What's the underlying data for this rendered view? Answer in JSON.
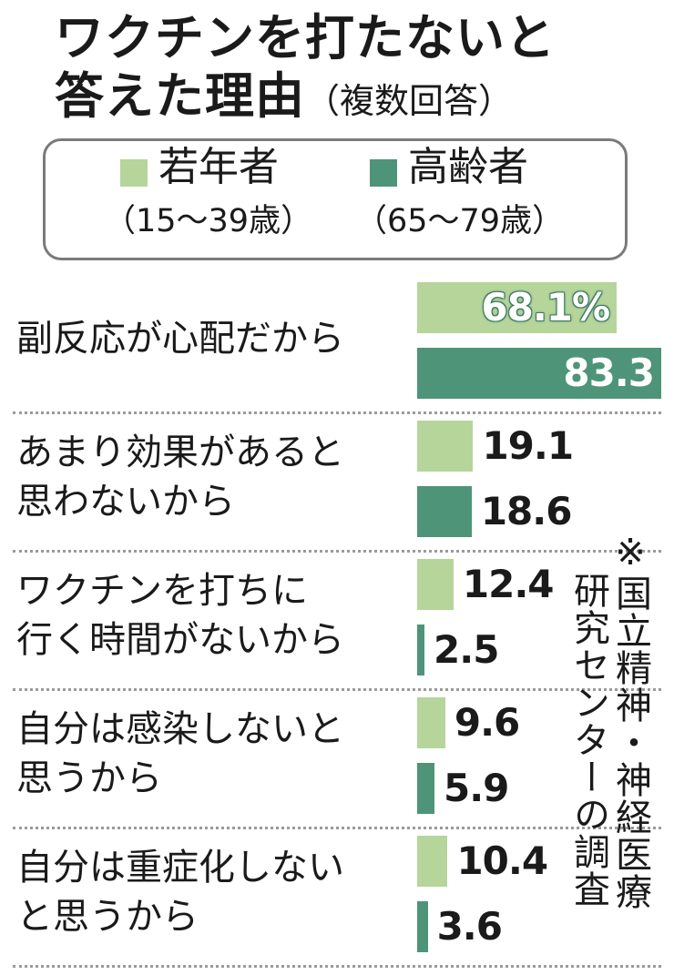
{
  "title": {
    "line1": "ワクチンを打たないと",
    "line2": "答えた理由",
    "subtitle": "（複数回答）"
  },
  "colors": {
    "young": "#b5d59b",
    "elderly": "#4e9478"
  },
  "legend": {
    "young": {
      "name": "若年者",
      "range": "（15～39歳）"
    },
    "elderly": {
      "name": "高齢者",
      "range": "（65～79歳）"
    }
  },
  "note": {
    "col1": "※国立精神・神経医療",
    "col2": "研究センターの調査"
  },
  "chart_data": {
    "type": "bar",
    "orientation": "horizontal",
    "xlim": [
      0,
      83.3
    ],
    "categories": [
      "副反応が心配だから",
      "あまり効果があると\n思わないから",
      "ワクチンを打ちに\n行く時間がないから",
      "自分は感染しないと\n思うから",
      "自分は重症化しない\nと思うから"
    ],
    "series": [
      {
        "name": "若年者",
        "color": "#b5d59b",
        "values": [
          68.1,
          19.1,
          12.4,
          9.6,
          10.4
        ],
        "labels": [
          "68.1%",
          "19.1",
          "12.4",
          "9.6",
          "10.4"
        ]
      },
      {
        "name": "高齢者",
        "color": "#4e9478",
        "values": [
          83.3,
          18.6,
          2.5,
          5.9,
          3.6
        ],
        "labels": [
          "83.3",
          "18.6",
          "2.5",
          "5.9",
          "3.6"
        ]
      }
    ]
  }
}
